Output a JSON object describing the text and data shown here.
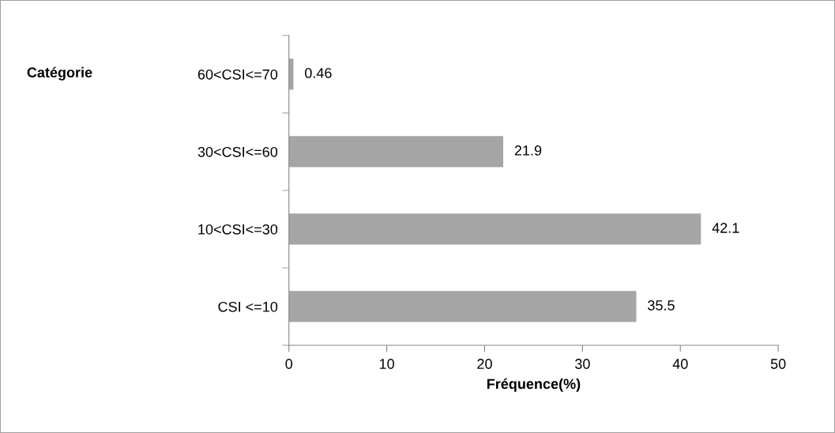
{
  "chart_data": {
    "type": "bar",
    "orientation": "horizontal",
    "categories": [
      "60<CSI<=70",
      "30<CSI<=60",
      "10<CSI<=30",
      "CSI <=10"
    ],
    "values": [
      0.46,
      21.9,
      42.1,
      35.5
    ],
    "color": "#a5a5a5",
    "xlim": [
      0,
      50
    ],
    "xticks": [
      0,
      10,
      20,
      30,
      40,
      50
    ],
    "xlabel": "Fréquence(%)",
    "annotations": [
      "Catégorie"
    ],
    "data_labels": true,
    "grid": false,
    "legend": false
  }
}
